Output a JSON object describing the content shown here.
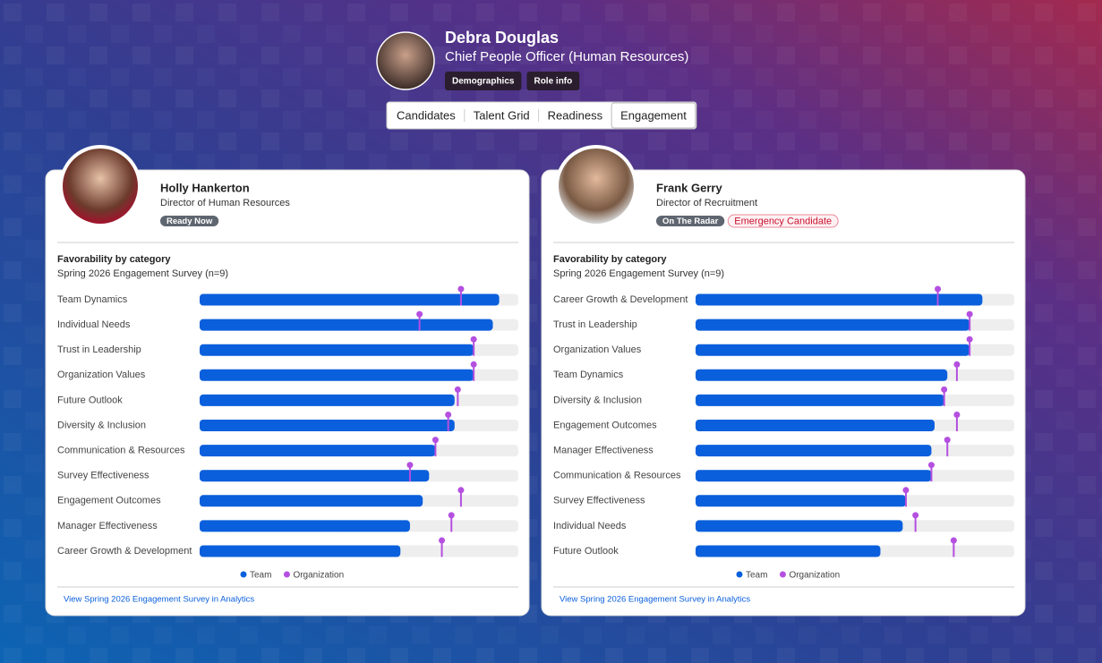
{
  "profile": {
    "name": "Debra Douglas",
    "role": "Chief People Officer (Human Resources)",
    "tags": [
      "Demographics",
      "Role info"
    ]
  },
  "tabs": {
    "items": [
      "Candidates",
      "Talent Grid",
      "Readiness",
      "Engagement"
    ],
    "active": 3
  },
  "cards": [
    {
      "name": "Holly Hankerton",
      "title": "Director of Human Resources",
      "badges": [
        {
          "label": "Ready Now",
          "style": "dark"
        }
      ],
      "chart": {
        "type": "bar",
        "title": "Favorability by category",
        "subtitle": "Spring 2026 Engagement Survey (n=9)",
        "categories": [
          "Team Dynamics",
          "Individual Needs",
          "Trust in Leadership",
          "Organization Values",
          "Future Outlook",
          "Diversity & Inclusion",
          "Communication & Resources",
          "Survey Effectiveness",
          "Engagement Outcomes",
          "Manager Effectiveness",
          "Career Growth & Development"
        ],
        "xlim": [
          0,
          100
        ],
        "series": [
          {
            "name": "Team",
            "color": "#0a5fdc",
            "values": [
              94,
              92,
              86,
              86,
              80,
              80,
              74,
              72,
              70,
              66,
              63
            ]
          },
          {
            "name": "Organization",
            "color": "#b44fe0",
            "values": [
              82,
              69,
              86,
              86,
              81,
              78,
              74,
              66,
              82,
              79,
              76
            ]
          }
        ]
      },
      "link": "View Spring 2026 Engagement Survey in Analytics"
    },
    {
      "name": "Frank Gerry",
      "title": "Director of Recruitment",
      "badges": [
        {
          "label": "On The Radar",
          "style": "dark"
        },
        {
          "label": "Emergency Candidate",
          "style": "danger"
        }
      ],
      "chart": {
        "type": "bar",
        "title": "Favorability by category",
        "subtitle": "Spring 2026 Engagement Survey (n=9)",
        "categories": [
          "Career Growth & Development",
          "Trust in Leadership",
          "Organization Values",
          "Team Dynamics",
          "Diversity & Inclusion",
          "Engagement Outcomes",
          "Manager Effectiveness",
          "Communication & Resources",
          "Survey Effectiveness",
          "Individual Needs",
          "Future Outlook"
        ],
        "xlim": [
          0,
          100
        ],
        "series": [
          {
            "name": "Team",
            "color": "#0a5fdc",
            "values": [
              90,
              86,
              86,
              79,
              78,
              75,
              74,
              74,
              66,
              65,
              58
            ]
          },
          {
            "name": "Organization",
            "color": "#b44fe0",
            "values": [
              76,
              86,
              86,
              82,
              78,
              82,
              79,
              74,
              66,
              69,
              81
            ]
          }
        ]
      },
      "link": "View Spring 2026 Engagement Survey in Analytics"
    }
  ]
}
